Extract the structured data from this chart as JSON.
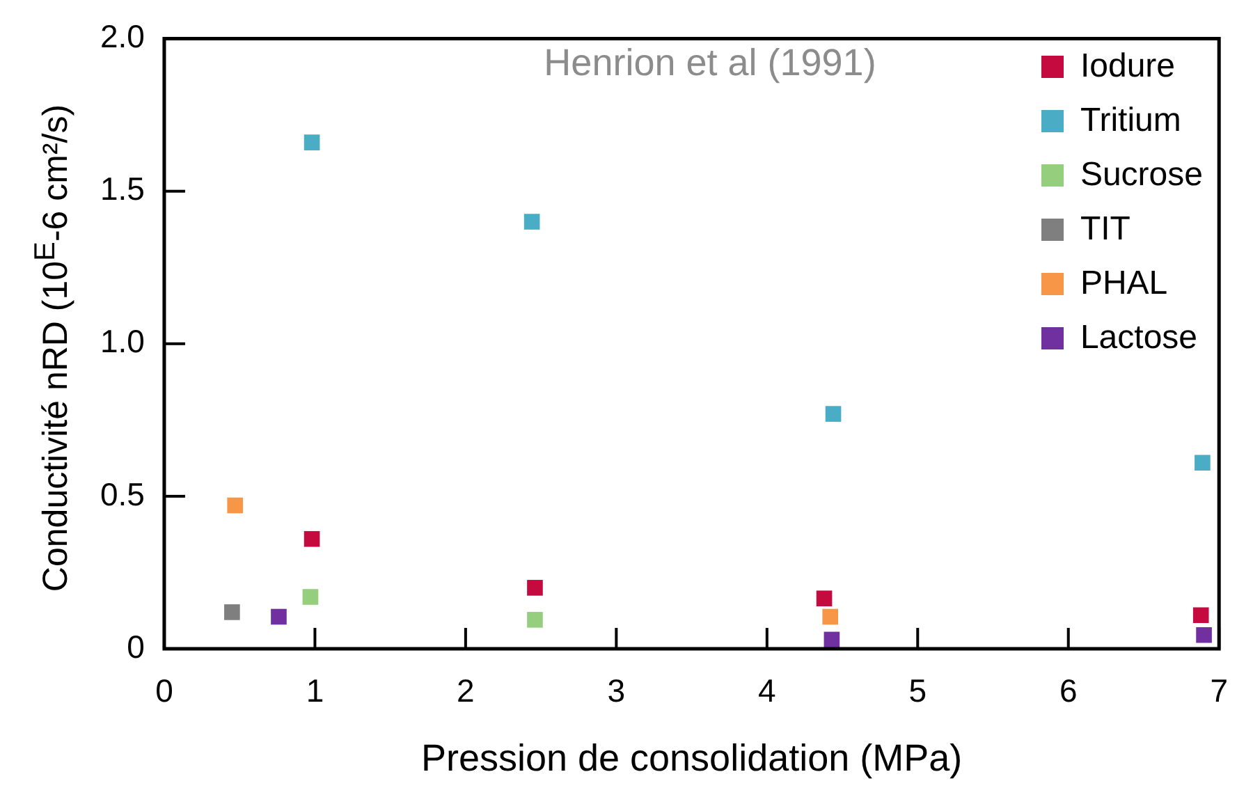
{
  "chart_data": {
    "type": "scatter",
    "xlabel": "Pression de consolidation (MPa)",
    "ylabel": "Conductivité nRD (10$^{E}$-6 cm²/s)",
    "annotations": [
      "Henrion et al (1991)"
    ],
    "xlim": [
      0,
      7
    ],
    "xticks": [
      0,
      1,
      2,
      3,
      4,
      5,
      6,
      7
    ],
    "ylim": [
      0,
      2
    ],
    "yticks": [
      0,
      0.5,
      {
        "value": 1,
        "label": "1.0"
      },
      1.5,
      {
        "value": 2,
        "label": "2.0"
      }
    ],
    "grid": false,
    "legend": "top right",
    "marker": "square",
    "series": [
      {
        "name": "Iodure",
        "color": "#c40a3f",
        "x": [
          0.98,
          2.46,
          4.38,
          6.88
        ],
        "values": [
          0.36,
          0.2,
          0.165,
          0.11
        ]
      },
      {
        "name": "Tritium",
        "color": "#4bacc6",
        "x": [
          0.98,
          2.44,
          4.44,
          6.89
        ],
        "values": [
          1.66,
          1.4,
          0.77,
          0.61
        ]
      },
      {
        "name": "Sucrose",
        "color": "#95cf7d",
        "x": [
          0.97,
          2.46
        ],
        "values": [
          0.17,
          0.095
        ]
      },
      {
        "name": "TIT",
        "color": "#7f7f7f",
        "x": [
          0.45
        ],
        "values": [
          0.12
        ]
      },
      {
        "name": "PHAL",
        "color": "#f79646",
        "x": [
          0.47,
          4.42
        ],
        "values": [
          0.47,
          0.105
        ]
      },
      {
        "name": "Lactose",
        "color": "#7030a0",
        "x": [
          0.76,
          4.43,
          6.9
        ],
        "values": [
          0.105,
          0.03,
          0.045
        ]
      }
    ]
  }
}
